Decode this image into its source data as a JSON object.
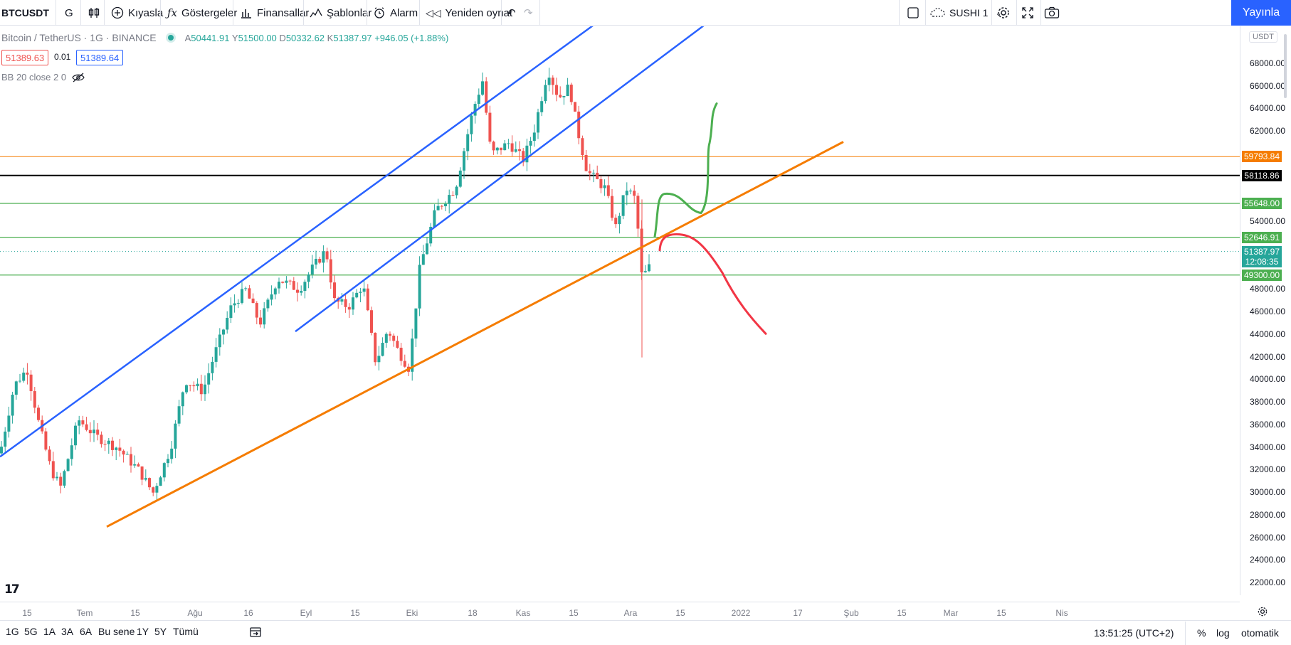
{
  "toolbar": {
    "symbol": "BTCUSDT",
    "interval": "G",
    "compare": "Kıyasla",
    "indicators": "Göstergeler",
    "financials": "Finansallar",
    "templates": "Şablonlar",
    "alert": "Alarm",
    "replay": "Yeniden oynat",
    "layout_name": "SUSHI 1",
    "publish": "Yayınla"
  },
  "legend": {
    "title": "Bitcoin / TetherUS · 1G · BINANCE",
    "open_label": "A",
    "open": "50441.91",
    "high_label": "Y",
    "high": "51500.00",
    "low_label": "D",
    "low": "50332.62",
    "close_label": "K",
    "close": "51387.97",
    "change": "+946.05 (+1.88%)",
    "sell": "51389.63",
    "spread": "0.01",
    "buy": "51389.64",
    "indicator": "BB 20 close 2 0"
  },
  "price_axis": {
    "currency": "USDT",
    "labels": [
      "68000.00",
      "66000.00",
      "64000.00",
      "62000.00",
      "54000.00",
      "48000.00",
      "46000.00",
      "44000.00",
      "42000.00",
      "40000.00",
      "38000.00",
      "36000.00",
      "34000.00",
      "32000.00",
      "30000.00",
      "28000.00",
      "26000.00",
      "24000.00",
      "22000.00"
    ],
    "tags": [
      {
        "value": "59793.84",
        "color": "#f57c00"
      },
      {
        "value": "58118.86",
        "color": "#000000"
      },
      {
        "value": "55648.00",
        "color": "#4caf50"
      },
      {
        "value": "52646.91",
        "color": "#4caf50"
      },
      {
        "value": "51387.97",
        "color": "#26a69a"
      },
      {
        "value": "49300.00",
        "color": "#4caf50"
      }
    ],
    "countdown": "12:08:35"
  },
  "time_axis": [
    "15",
    "Tem",
    "15",
    "Ağu",
    "16",
    "Eyl",
    "15",
    "Eki",
    "18",
    "Kas",
    "15",
    "Ara",
    "15",
    "2022",
    "17",
    "Şub",
    "15",
    "Mar",
    "15",
    "Nis"
  ],
  "bottombar": {
    "ranges": [
      "1G",
      "5G",
      "1A",
      "3A",
      "6A",
      "Bu sene",
      "1Y",
      "5Y",
      "Tümü"
    ],
    "time": "13:51:25 (UTC+2)",
    "percent": "%",
    "log": "log",
    "auto": "otomatik"
  },
  "colors": {
    "up": "#26a69a",
    "down": "#ef5350",
    "channel": "#2962ff",
    "trendline": "#f57c00",
    "support": "#4caf50",
    "bull_path": "#4caf50",
    "bear_path": "#f23645"
  }
}
